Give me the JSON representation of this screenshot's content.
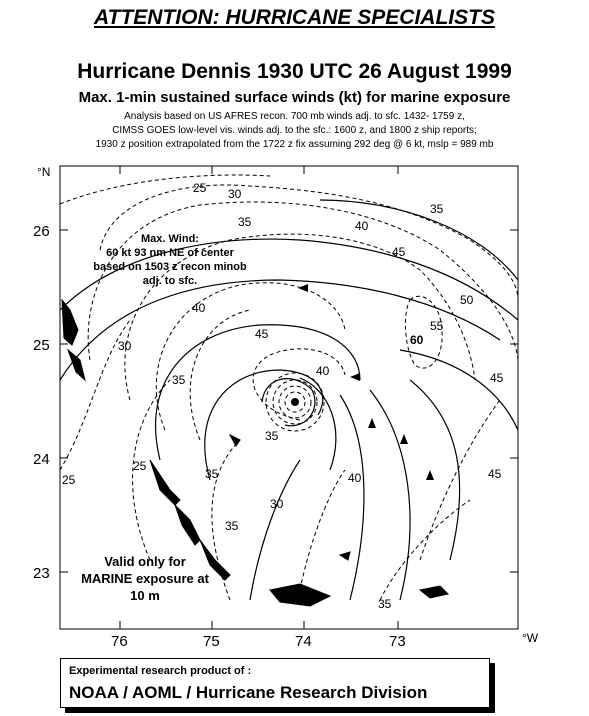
{
  "header": {
    "attention": "ATTENTION: HURRICANE SPECIALISTS",
    "title": "Hurricane Dennis 1930 UTC 26 August 1999",
    "subtitle": "Max. 1-min sustained surface winds (kt) for marine exposure",
    "notes": [
      "Analysis based on US AFRES recon. 700 mb winds adj. to sfc. 1432- 1759 z,",
      "CIMSS GOES low-level vis. winds adj. to the sfc.: 1600 z, and 1800 z ship reports;",
      "1930 z position extrapolated from the 1722 z fix assuming 292 deg @ 6 kt, mslp = 989 mb"
    ]
  },
  "map": {
    "lat_unit": "°N",
    "lon_unit": "°W",
    "lat_ticks": [
      "26",
      "25",
      "24",
      "23"
    ],
    "lon_ticks": [
      "76",
      "75",
      "74",
      "73"
    ],
    "annotations": {
      "max_wind": [
        "Max. Wind:",
        "60 kt  93 nm NE of center",
        "based on 1503  z recon minob",
        "adj. to sfc."
      ],
      "valid": [
        "Valid only for",
        "MARINE exposure at",
        "10 m"
      ]
    },
    "contour_labels": [
      "25",
      "30",
      "35",
      "40",
      "35",
      "45",
      "50",
      "55",
      "60",
      "45",
      "40",
      "45",
      "30",
      "35",
      "40",
      "25",
      "35",
      "35",
      "40",
      "45",
      "25",
      "30",
      "35",
      "35"
    ],
    "colors": {
      "line": "#000000",
      "background": "#ffffff",
      "land": "#000000"
    }
  },
  "footer": {
    "line1": "Experimental research product of :",
    "line2": "NOAA / AOML / Hurricane Research Division"
  }
}
